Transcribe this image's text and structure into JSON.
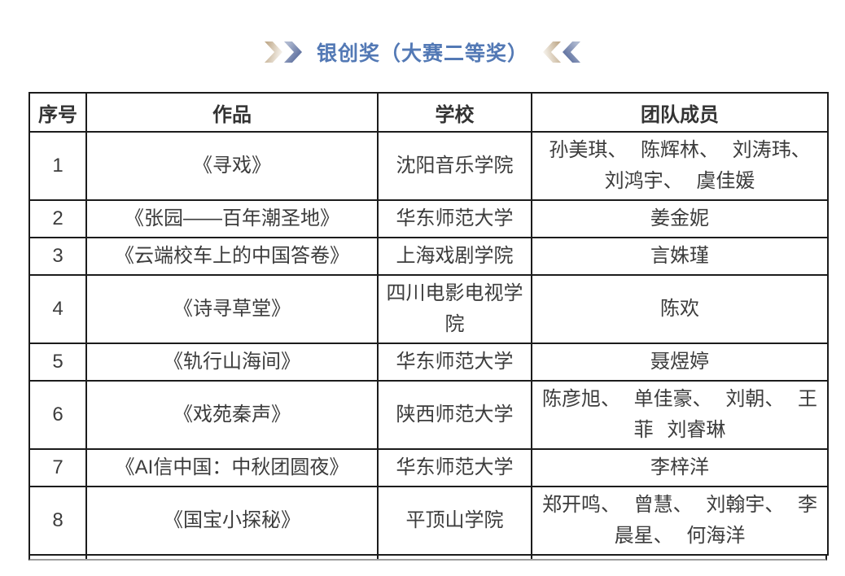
{
  "title": {
    "text": "银创奖（大赛二等奖）"
  },
  "colors": {
    "accent_blue": "#5379b5",
    "chevron_blue": "#576a9b",
    "chevron_tan": "#c0aa8b",
    "table_border": "#1c1c1c",
    "body_text": "#3c3c3c"
  },
  "decorations": {
    "left_icon": "double-chevron-right",
    "right_icon": "double-chevron-left"
  },
  "table": {
    "headers": {
      "no": "序号",
      "work": "作品",
      "school": "学校",
      "team": "团队成员"
    },
    "rows": [
      {
        "no": "1",
        "work": "《寻戏》",
        "school": "沈阳音乐学院",
        "team": "孙美琪、 陈辉林、 刘涛玮、 刘鸿宇、 虞佳媛"
      },
      {
        "no": "2",
        "work": "《张园——百年潮圣地》",
        "school": "华东师范大学",
        "team": "姜金妮"
      },
      {
        "no": "3",
        "work": "《云端校车上的中国答卷》",
        "school": "上海戏剧学院",
        "team": "言姝瑾"
      },
      {
        "no": "4",
        "work": "《诗寻草堂》",
        "school": "四川电影电视学院",
        "team": "陈欢"
      },
      {
        "no": "5",
        "work": "《轨行山海间》",
        "school": "华东师范大学",
        "team": "聂煜婷"
      },
      {
        "no": "6",
        "work": "《戏苑秦声》",
        "school": "陕西师范大学",
        "team": "陈彦旭、 单佳豪、 刘朝、 王菲 刘睿琳"
      },
      {
        "no": "7",
        "work": "《AI信中国：中秋团圆夜》",
        "school": "华东师范大学",
        "team": "李梓洋"
      },
      {
        "no": "8",
        "work": "《国宝小探秘》",
        "school": "平顶山学院",
        "team": "郑开鸣、 曾慧、 刘翰宇、 李晨星、 何海洋"
      }
    ]
  }
}
